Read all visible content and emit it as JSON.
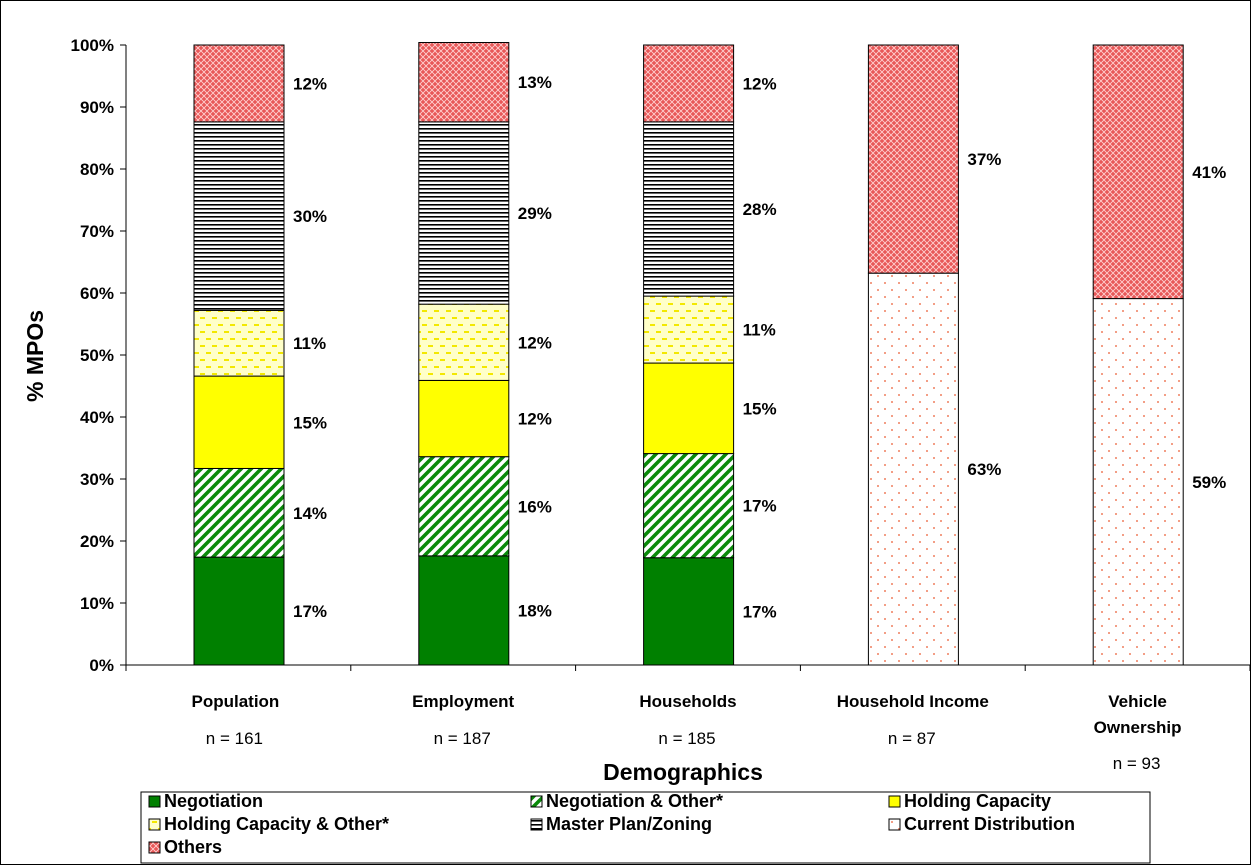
{
  "chart_data": {
    "type": "bar",
    "stacked": true,
    "xlabel": "Demographics",
    "ylabel": "% MPOs",
    "ylim": [
      0,
      100
    ],
    "ytick_labels": [
      "0%",
      "10%",
      "20%",
      "30%",
      "40%",
      "50%",
      "60%",
      "70%",
      "80%",
      "90%",
      "100%"
    ],
    "grid": false,
    "legend_position": "bottom",
    "categories": [
      {
        "label_lines": [
          "Population"
        ],
        "n_label": "n = 161"
      },
      {
        "label_lines": [
          "Employment"
        ],
        "n_label": "n = 187"
      },
      {
        "label_lines": [
          "Households"
        ],
        "n_label": "n = 185"
      },
      {
        "label_lines": [
          "Household Income"
        ],
        "n_label": "n = 87"
      },
      {
        "label_lines": [
          "Vehicle",
          "Ownership"
        ],
        "n_label": "n = 93"
      }
    ],
    "series": [
      {
        "name": "Negotiation",
        "pattern": "solid-green",
        "color": "#008000",
        "values": [
          17.4,
          17.6,
          17.3,
          0,
          0
        ],
        "labels": [
          "17%",
          "18%",
          "17%",
          "",
          ""
        ]
      },
      {
        "name": "Negotiation & Other*",
        "pattern": "diagonal-green",
        "color": "#008000",
        "values": [
          14.3,
          16.0,
          16.8,
          0,
          0
        ],
        "labels": [
          "14%",
          "16%",
          "17%",
          "",
          ""
        ]
      },
      {
        "name": "Holding Capacity",
        "pattern": "solid-yellow",
        "color": "#ffff00",
        "values": [
          14.9,
          12.3,
          14.6,
          0,
          0
        ],
        "labels": [
          "15%",
          "12%",
          "15%",
          "",
          ""
        ]
      },
      {
        "name": "Holding Capacity & Other*",
        "pattern": "dashed-yellow",
        "color": "#ffff66",
        "values": [
          10.6,
          12.3,
          10.8,
          0,
          0
        ],
        "labels": [
          "11%",
          "12%",
          "11%",
          "",
          ""
        ]
      },
      {
        "name": "Master Plan/Zoning",
        "pattern": "horizontal-lines",
        "color": "#000000",
        "values": [
          30.4,
          29.4,
          28.1,
          0,
          0
        ],
        "labels": [
          "30%",
          "29%",
          "28%",
          "",
          ""
        ]
      },
      {
        "name": "Current Distribution",
        "pattern": "dotted-salmon",
        "color": "#f08060",
        "values": [
          0,
          0,
          0,
          63.2,
          59.1
        ],
        "labels": [
          "",
          "",
          "",
          "63%",
          "59%"
        ]
      },
      {
        "name": "Others",
        "pattern": "crosshatch-red",
        "color": "#e84c4c",
        "values": [
          12.4,
          12.8,
          12.4,
          36.8,
          40.9
        ],
        "labels": [
          "12%",
          "13%",
          "12%",
          "37%",
          "41%"
        ]
      }
    ]
  }
}
